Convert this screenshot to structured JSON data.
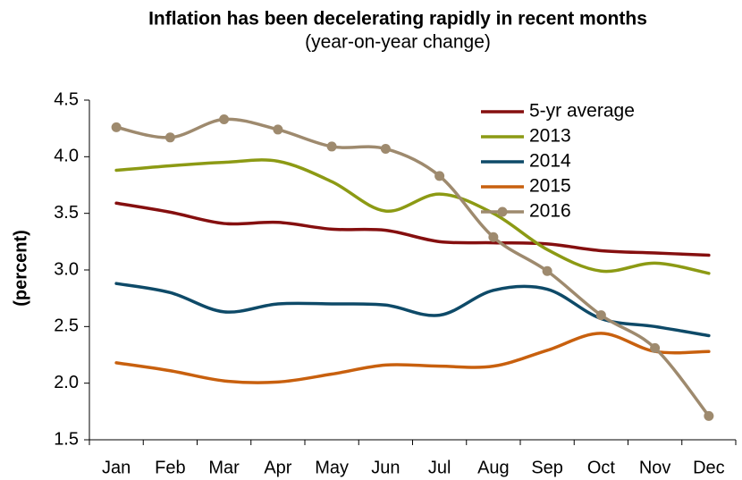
{
  "chart_data": {
    "type": "line",
    "title": "Inflation has been decelerating rapidly in recent months",
    "subtitle": "(year-on-year change)",
    "y_label": "(percent)",
    "categories": [
      "Jan",
      "Feb",
      "Mar",
      "Apr",
      "May",
      "Jun",
      "Jul",
      "Aug",
      "Sep",
      "Oct",
      "Nov",
      "Dec"
    ],
    "series": [
      {
        "name": "5-yr average",
        "color": "#850f0f",
        "values": [
          3.59,
          3.51,
          3.41,
          3.42,
          3.36,
          3.35,
          3.25,
          3.24,
          3.23,
          3.17,
          3.15,
          3.13
        ]
      },
      {
        "name": "2013",
        "color": "#8c9a14",
        "values": [
          3.88,
          3.92,
          3.95,
          3.96,
          3.78,
          3.52,
          3.67,
          3.5,
          3.18,
          2.99,
          3.06,
          2.97
        ]
      },
      {
        "name": "2014",
        "color": "#0e4a68",
        "values": [
          2.88,
          2.8,
          2.63,
          2.7,
          2.7,
          2.69,
          2.6,
          2.82,
          2.83,
          2.57,
          2.5,
          2.42
        ]
      },
      {
        "name": "2015",
        "color": "#c8600e",
        "values": [
          2.18,
          2.11,
          2.02,
          2.01,
          2.08,
          2.16,
          2.15,
          2.15,
          2.29,
          2.44,
          2.28,
          2.28
        ]
      },
      {
        "name": "2016",
        "color": "#9e8a6e",
        "markers": true,
        "values": [
          4.26,
          4.17,
          4.33,
          4.24,
          4.09,
          4.07,
          3.83,
          3.29,
          2.99,
          2.6,
          2.31,
          1.71
        ]
      }
    ],
    "ylim": [
      1.5,
      4.5
    ],
    "yticks": [
      {
        "value": 1.5,
        "label": "1.5"
      },
      {
        "value": 2,
        "label": "2.0"
      },
      {
        "value": 2.5,
        "label": "2.5"
      },
      {
        "value": 3,
        "label": "3.0"
      },
      {
        "value": 3.5,
        "label": "3.5"
      },
      {
        "value": 4,
        "label": "4.0"
      },
      {
        "value": 4.5,
        "label": "4.5"
      }
    ],
    "smooth": true,
    "legend": "top-right"
  }
}
